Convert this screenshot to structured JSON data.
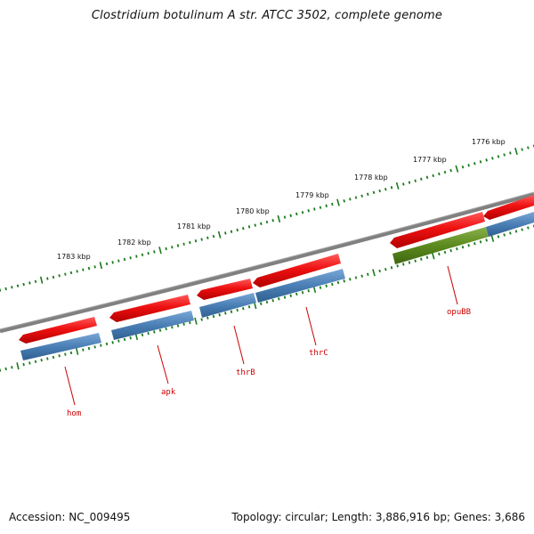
{
  "title": "Clostridium botulinum A str. ATCC 3502, complete genome",
  "accession_text": "Accession: NC_009495",
  "summary_text": "Topology: circular; Length: 3,886,916 bp; Genes: 3,686",
  "colors": {
    "backbone": "#808080",
    "tick": "#1a7a1a",
    "gene_red": "#ee1111",
    "gene_blue": "#4a7fb5",
    "gene_green": "#5b8a1e",
    "label_red": "#cc0000"
  },
  "scale_labels": [
    "1776 kbp",
    "1777 kbp",
    "1778 kbp",
    "1779 kbp",
    "1780 kbp",
    "1781 kbp",
    "1782 kbp",
    "1783 kbp"
  ],
  "genes": [
    {
      "name": "opuBB",
      "color": "gene_green"
    },
    {
      "name": "thrC",
      "color": "gene_blue"
    },
    {
      "name": "thrB",
      "color": "gene_blue"
    },
    {
      "name": "apk",
      "color": "gene_blue"
    },
    {
      "name": "hom",
      "color": "gene_blue"
    }
  ]
}
